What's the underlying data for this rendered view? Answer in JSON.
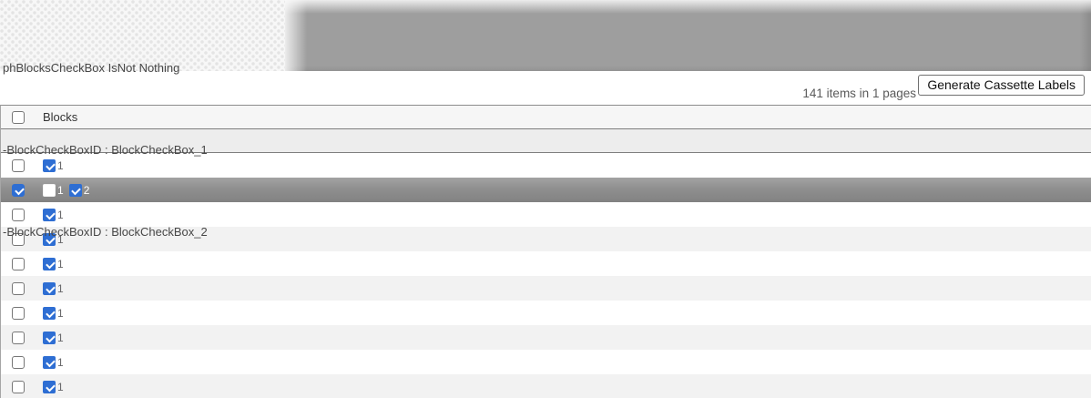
{
  "debug_panel": {
    "lines": [
      "phBlocksCheckBox IsNot Nothing",
      "-BlockCheckBoxID : BlockCheckBox_1",
      "-BlockCheckBoxID : BlockCheckBox_2"
    ]
  },
  "toolbar": {
    "items_summary": "141 items in 1 pages",
    "generate_button_label": "Generate Cassette Labels"
  },
  "table": {
    "columns": [
      {
        "label": "Blocks"
      }
    ],
    "header_checkbox_checked": false,
    "rows": [
      {
        "selected": false,
        "row_checked": false,
        "blocks": [
          {
            "label": "1",
            "checked": true
          }
        ]
      },
      {
        "selected": true,
        "row_checked": true,
        "blocks": [
          {
            "label": "1",
            "checked": false
          },
          {
            "label": "2",
            "checked": true
          }
        ]
      },
      {
        "selected": false,
        "row_checked": false,
        "blocks": [
          {
            "label": "1",
            "checked": true
          }
        ]
      },
      {
        "selected": false,
        "row_checked": false,
        "blocks": [
          {
            "label": "1",
            "checked": true
          }
        ]
      },
      {
        "selected": false,
        "row_checked": false,
        "blocks": [
          {
            "label": "1",
            "checked": true
          }
        ]
      },
      {
        "selected": false,
        "row_checked": false,
        "blocks": [
          {
            "label": "1",
            "checked": true
          }
        ]
      },
      {
        "selected": false,
        "row_checked": false,
        "blocks": [
          {
            "label": "1",
            "checked": true
          }
        ]
      },
      {
        "selected": false,
        "row_checked": false,
        "blocks": [
          {
            "label": "1",
            "checked": true
          }
        ]
      },
      {
        "selected": false,
        "row_checked": false,
        "blocks": [
          {
            "label": "1",
            "checked": true
          }
        ]
      },
      {
        "selected": false,
        "row_checked": false,
        "blocks": [
          {
            "label": "1",
            "checked": true
          }
        ]
      }
    ]
  },
  "colors": {
    "accent_blue": "#2e6ed3",
    "selected_row_gray": "#8f8f8f",
    "band_gray": "#9e9e9e"
  }
}
